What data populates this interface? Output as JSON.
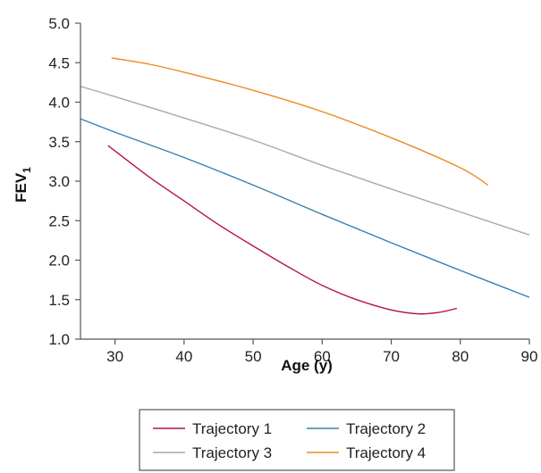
{
  "chart_data": {
    "type": "line",
    "xlabel": "Age (y)",
    "ylabel": {
      "main": "FEV",
      "subscript": "1"
    },
    "xlim": [
      25,
      90
    ],
    "ylim": [
      1.0,
      5.0
    ],
    "xticks": [
      30,
      40,
      50,
      60,
      70,
      80,
      90
    ],
    "yticks": [
      "1.0",
      "1.5",
      "2.0",
      "2.5",
      "3.0",
      "3.5",
      "4.0",
      "4.5",
      "5.0"
    ],
    "grid": false,
    "legend_position": "bottom",
    "series": [
      {
        "name": "Trajectory 1",
        "color": "#b5124a",
        "x": [
          29,
          35,
          40,
          45,
          50,
          55,
          60,
          65,
          70,
          74,
          77,
          79.5
        ],
        "y": [
          3.45,
          3.05,
          2.75,
          2.45,
          2.18,
          1.92,
          1.68,
          1.5,
          1.37,
          1.32,
          1.34,
          1.39
        ]
      },
      {
        "name": "Trajectory 2",
        "color": "#3a7fb0",
        "x": [
          25,
          30,
          40,
          50,
          60,
          70,
          80,
          90
        ],
        "y": [
          3.79,
          3.62,
          3.3,
          2.95,
          2.58,
          2.22,
          1.87,
          1.53
        ]
      },
      {
        "name": "Trajectory 3",
        "color": "#a9a9a9",
        "x": [
          25,
          30,
          40,
          50,
          60,
          70,
          80,
          90
        ],
        "y": [
          4.2,
          4.07,
          3.8,
          3.52,
          3.2,
          2.9,
          2.61,
          2.32
        ]
      },
      {
        "name": "Trajectory 4",
        "color": "#ee8a1f",
        "x": [
          29.5,
          35,
          40,
          50,
          60,
          70,
          80,
          84
        ],
        "y": [
          4.56,
          4.48,
          4.38,
          4.15,
          3.88,
          3.55,
          3.17,
          2.95
        ]
      }
    ]
  }
}
